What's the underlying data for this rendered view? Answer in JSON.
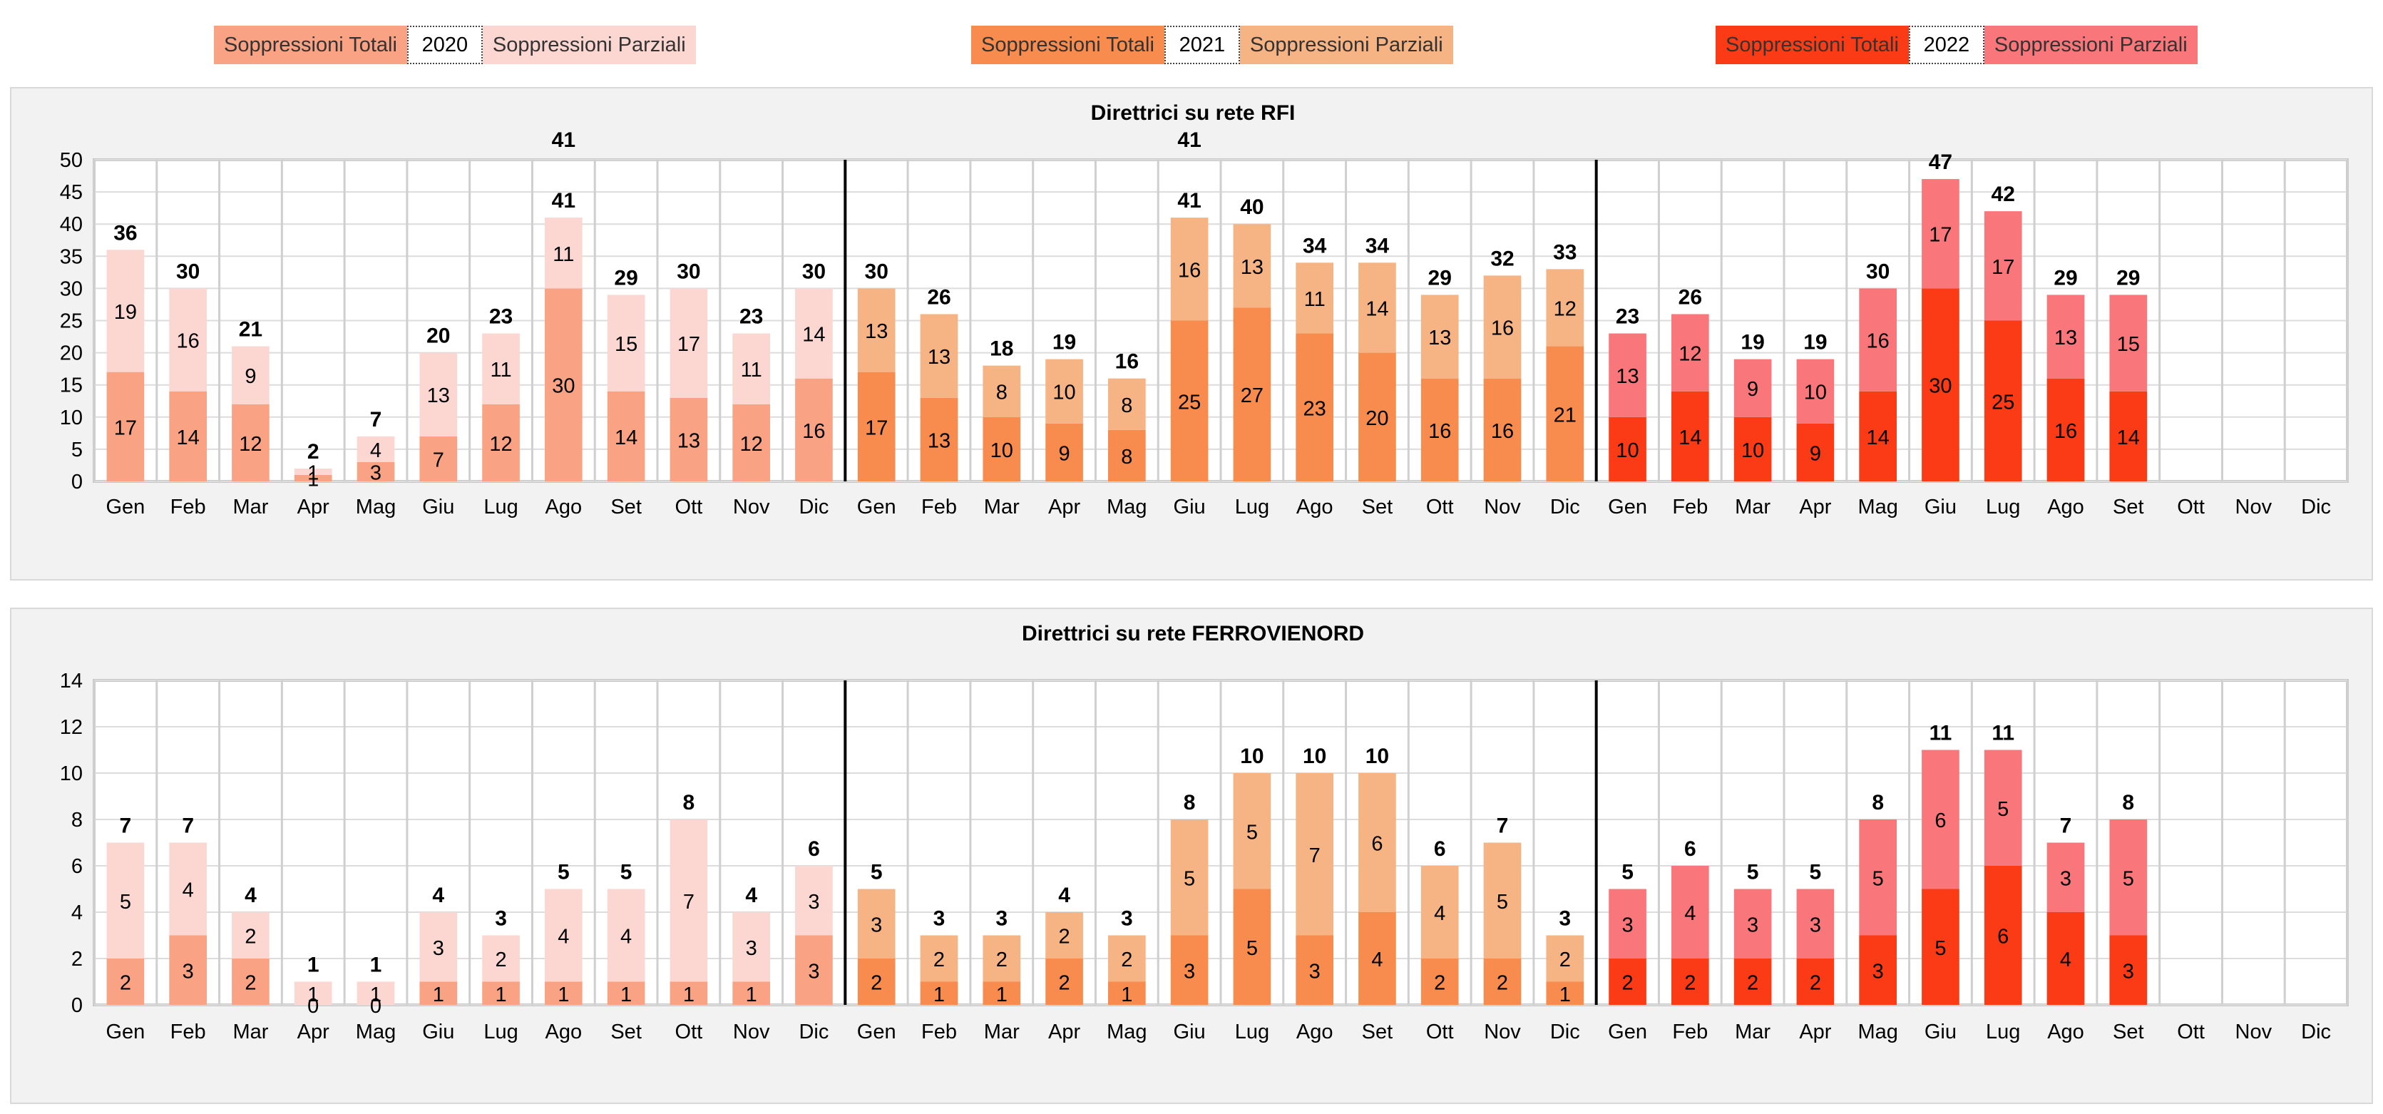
{
  "legend": [
    {
      "year": "2020",
      "totali": "Soppressioni Totali",
      "parziali": "Soppressioni Parziali",
      "color_totali": "#f9a384",
      "color_parziali": "#fcd7d1"
    },
    {
      "year": "2021",
      "totali": "Soppressioni Totali",
      "parziali": "Soppressioni Parziali",
      "color_totali": "#f78c4e",
      "color_parziali": "#f6b384"
    },
    {
      "year": "2022",
      "totali": "Soppressioni Totali",
      "parziali": "Soppressioni Parziali",
      "color_totali": "#fb3b15",
      "color_parziali": "#f9777a"
    }
  ],
  "chart_data": [
    {
      "type": "bar",
      "stacked": true,
      "title": "Direttrici su rete RFI",
      "ylim": [
        0,
        50
      ],
      "yticks": [
        0,
        5,
        10,
        15,
        20,
        25,
        30,
        35,
        40,
        45,
        50
      ],
      "grid": true,
      "categories": [
        "Gen",
        "Feb",
        "Mar",
        "Apr",
        "Mag",
        "Giu",
        "Lug",
        "Ago",
        "Set",
        "Ott",
        "Nov",
        "Dic",
        "Gen",
        "Feb",
        "Mar",
        "Apr",
        "Mag",
        "Giu",
        "Lug",
        "Ago",
        "Set",
        "Ott",
        "Nov",
        "Dic",
        "Gen",
        "Feb",
        "Mar",
        "Apr",
        "Mag",
        "Giu",
        "Lug",
        "Ago",
        "Set",
        "Ott",
        "Nov",
        "Dic"
      ],
      "series": [
        {
          "name": "Soppressioni Totali",
          "values": [
            17,
            14,
            12,
            1,
            3,
            7,
            12,
            30,
            14,
            13,
            12,
            16,
            17,
            13,
            10,
            9,
            8,
            25,
            27,
            23,
            20,
            16,
            16,
            21,
            10,
            14,
            10,
            9,
            14,
            30,
            25,
            16,
            14,
            null,
            null,
            null
          ]
        },
        {
          "name": "Soppressioni Parziali",
          "values": [
            19,
            16,
            9,
            1,
            4,
            13,
            11,
            11,
            15,
            17,
            11,
            14,
            13,
            13,
            8,
            10,
            8,
            16,
            13,
            11,
            14,
            13,
            16,
            12,
            13,
            12,
            9,
            10,
            16,
            17,
            17,
            13,
            15,
            null,
            null,
            null
          ]
        }
      ],
      "totals": [
        36,
        30,
        21,
        2,
        7,
        20,
        23,
        41,
        29,
        30,
        23,
        30,
        30,
        26,
        18,
        19,
        16,
        41,
        40,
        34,
        34,
        29,
        32,
        33,
        23,
        26,
        19,
        19,
        30,
        47,
        42,
        29,
        29,
        null,
        null,
        null
      ],
      "extra_labels": [
        {
          "index": 7,
          "text": "41"
        },
        {
          "index": 17,
          "text": "41"
        }
      ]
    },
    {
      "type": "bar",
      "stacked": true,
      "title": "Direttrici su rete FERROVIENORD",
      "ylim": [
        0,
        14
      ],
      "yticks": [
        0,
        2,
        4,
        6,
        8,
        10,
        12,
        14
      ],
      "grid": true,
      "categories": [
        "Gen",
        "Feb",
        "Mar",
        "Apr",
        "Mag",
        "Giu",
        "Lug",
        "Ago",
        "Set",
        "Ott",
        "Nov",
        "Dic",
        "Gen",
        "Feb",
        "Mar",
        "Apr",
        "Mag",
        "Giu",
        "Lug",
        "Ago",
        "Set",
        "Ott",
        "Nov",
        "Dic",
        "Gen",
        "Feb",
        "Mar",
        "Apr",
        "Mag",
        "Giu",
        "Lug",
        "Ago",
        "Set",
        "Ott",
        "Nov",
        "Dic"
      ],
      "series": [
        {
          "name": "Soppressioni Totali",
          "values": [
            2,
            3,
            2,
            0,
            0,
            1,
            1,
            1,
            1,
            1,
            1,
            3,
            2,
            1,
            1,
            2,
            1,
            3,
            5,
            3,
            4,
            2,
            2,
            1,
            2,
            2,
            2,
            2,
            3,
            5,
            6,
            4,
            3,
            null,
            null,
            null
          ]
        },
        {
          "name": "Soppressioni Parziali",
          "values": [
            5,
            4,
            2,
            1,
            1,
            3,
            2,
            4,
            4,
            7,
            3,
            3,
            3,
            2,
            2,
            2,
            2,
            5,
            5,
            7,
            6,
            4,
            5,
            2,
            3,
            4,
            3,
            3,
            5,
            6,
            5,
            3,
            5,
            null,
            null,
            null
          ]
        }
      ],
      "totals": [
        7,
        7,
        4,
        1,
        1,
        4,
        3,
        5,
        5,
        8,
        4,
        6,
        5,
        3,
        3,
        4,
        3,
        8,
        10,
        10,
        10,
        6,
        7,
        3,
        5,
        6,
        5,
        5,
        8,
        11,
        11,
        7,
        8,
        null,
        null,
        null
      ],
      "extra_labels": []
    }
  ]
}
